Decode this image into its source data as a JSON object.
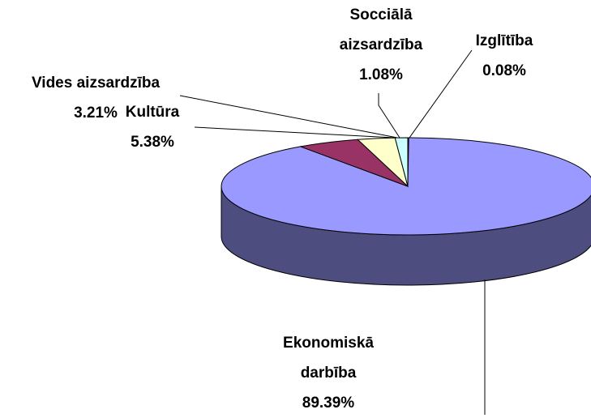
{
  "chart_data": {
    "type": "pie3d",
    "categories": [
      "Izglītība",
      "Ekonomiskā darbība",
      "Kultūra",
      "Vides aizsardzība",
      "Socciālā aizsardzība"
    ],
    "values": [
      0.08,
      89.39,
      5.38,
      3.21,
      1.08
    ],
    "value_labels": [
      "0.08%",
      "89.39%",
      "5.38%",
      "3.21%",
      "1.08%"
    ],
    "colors": [
      "#ff9999",
      "#9999ff",
      "#993366",
      "#ffffcc",
      "#ccffff"
    ],
    "side_colors": [
      "#804c4c",
      "#4d4d80",
      "#4d1933",
      "#808066",
      "#668080"
    ]
  }
}
